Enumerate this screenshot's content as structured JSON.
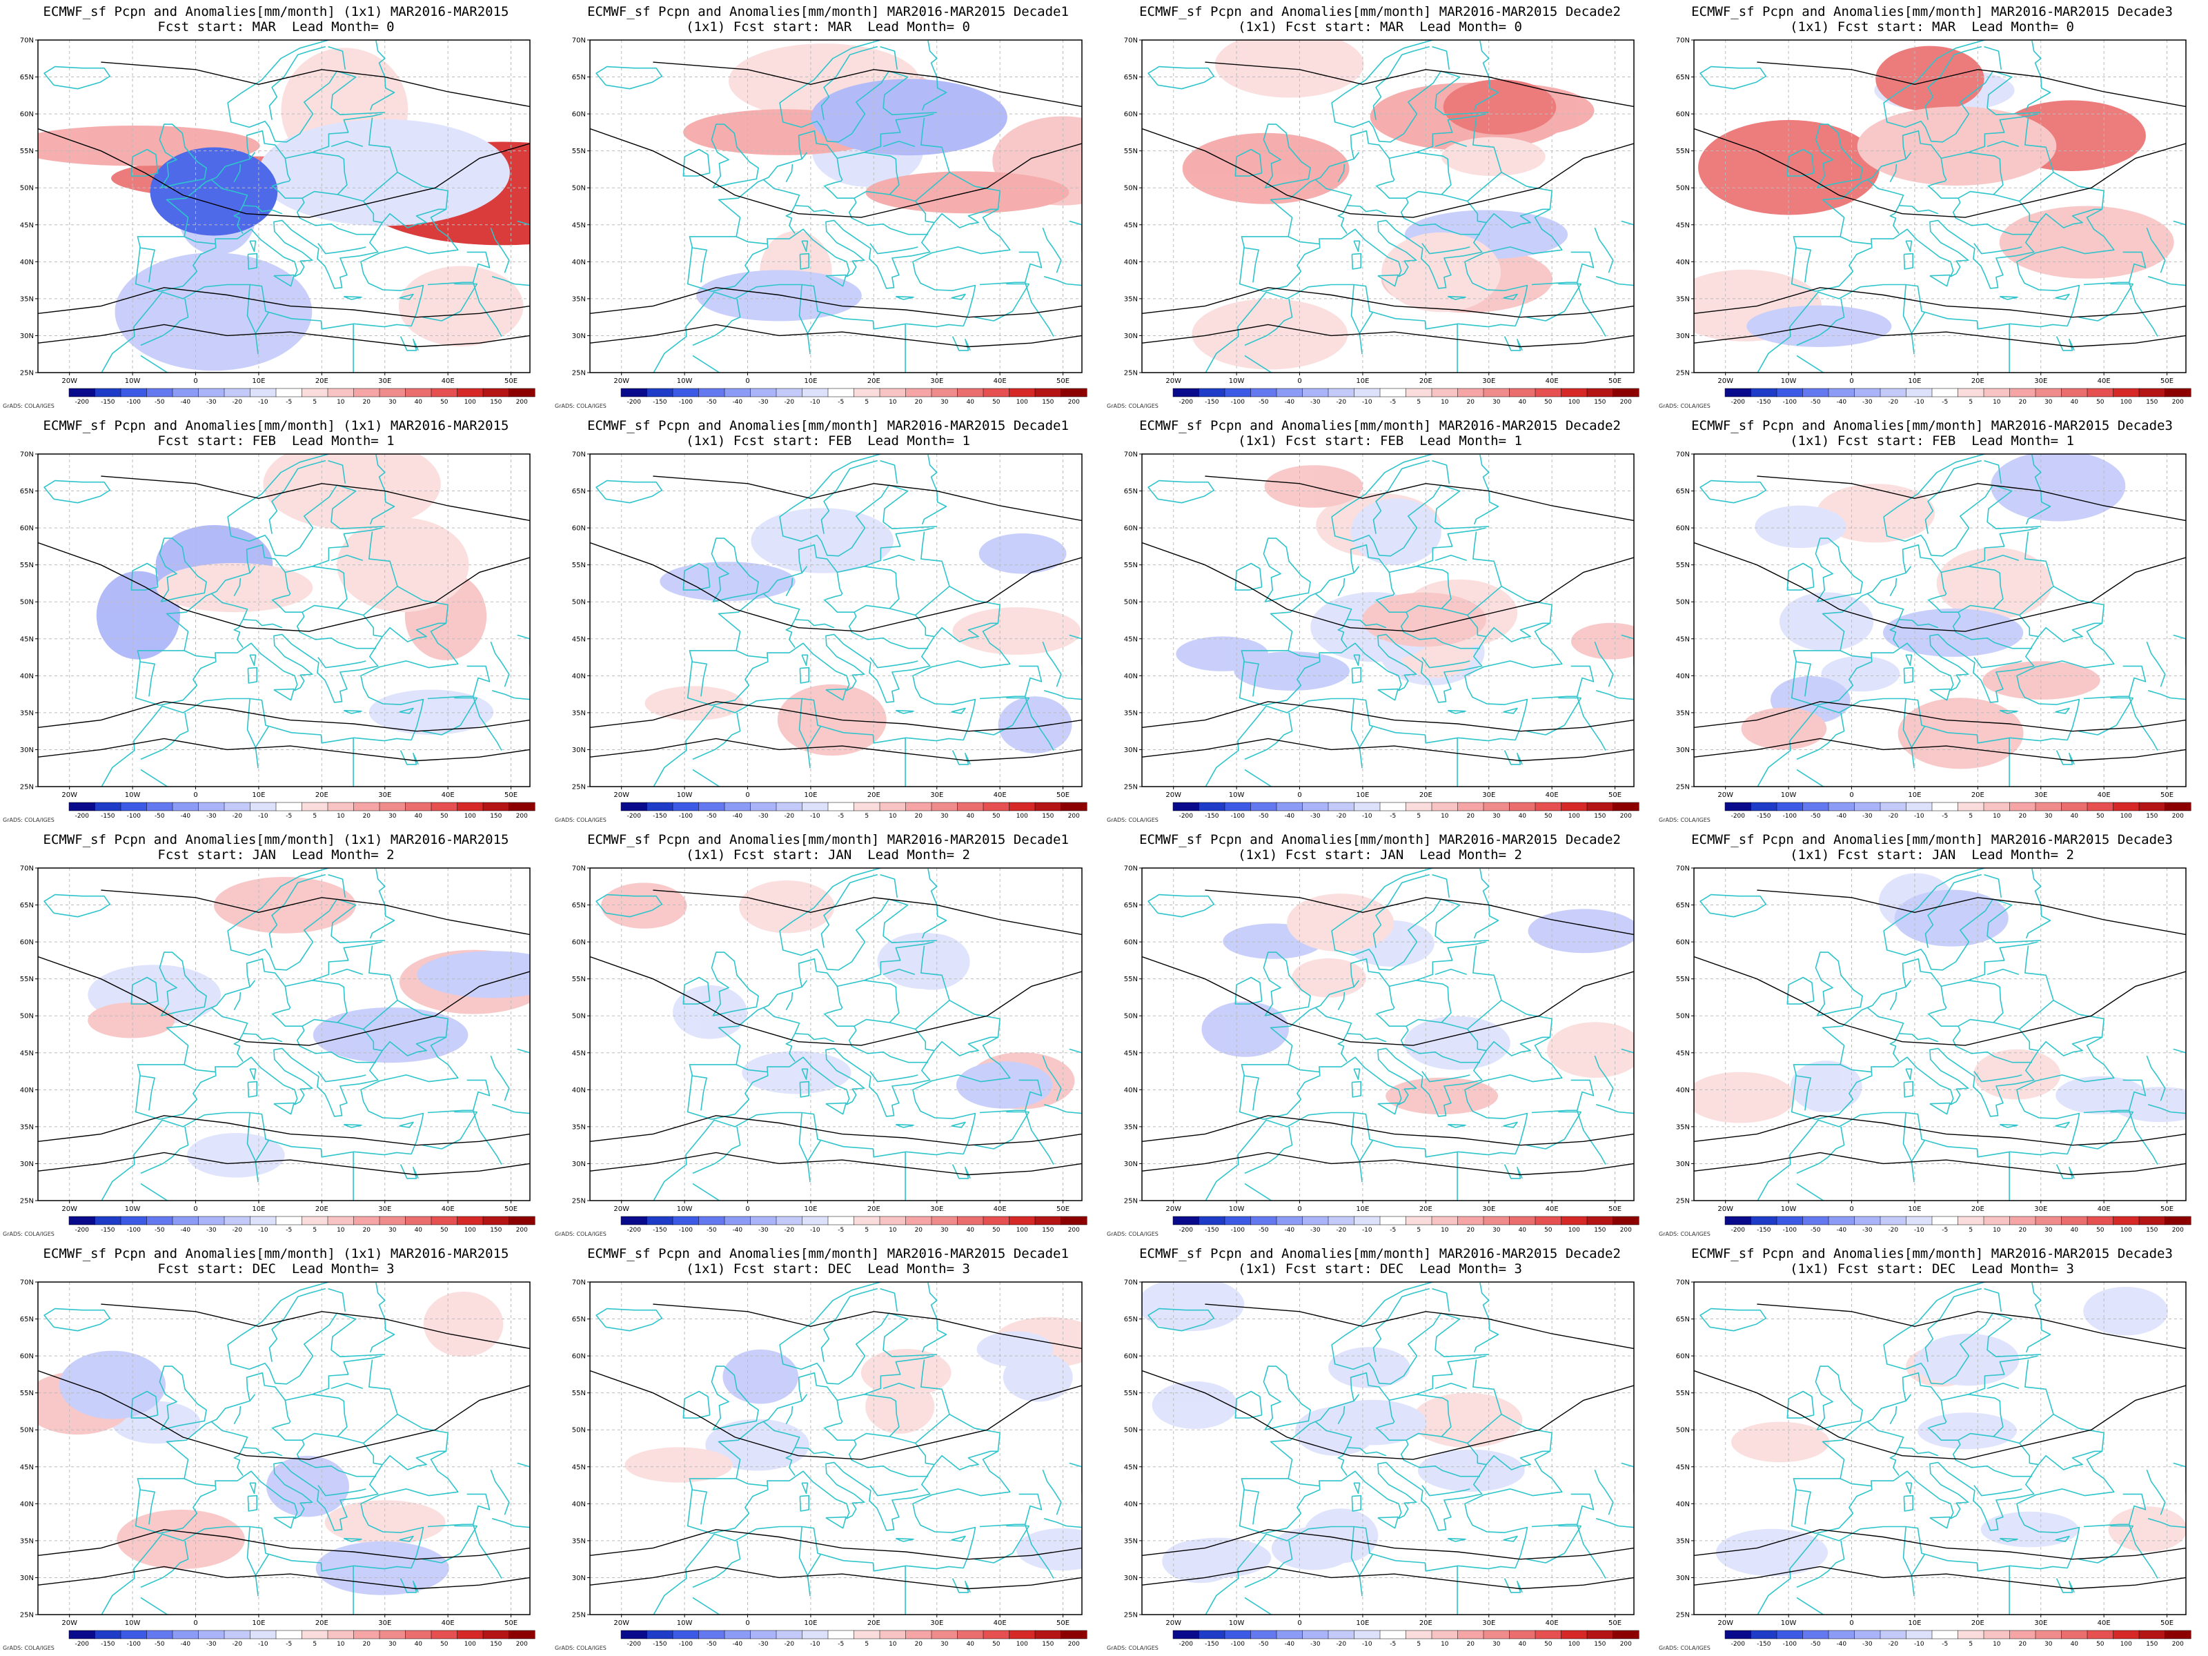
{
  "common": {
    "credit": "GrADS: COLA/IGES",
    "x_ticks": [
      "20W",
      "10W",
      "0",
      "10E",
      "20E",
      "30E",
      "40E",
      "50E"
    ],
    "y_ticks": [
      "70N",
      "65N",
      "60N",
      "55N",
      "50N",
      "45N",
      "40N",
      "35N",
      "30N",
      "25N"
    ],
    "colorbar_levels": [
      "-200",
      "-150",
      "-100",
      "-50",
      "-40",
      "-30",
      "-20",
      "-10",
      "-5",
      "5",
      "10",
      "20",
      "30",
      "40",
      "50",
      "100",
      "150",
      "200"
    ],
    "colorbar_colors": [
      "#0a0a8c",
      "#1e3cc8",
      "#3c5ae6",
      "#6478f0",
      "#8c9bf5",
      "#aab4f8",
      "#c3cafa",
      "#dde1fc",
      "#ffffff",
      "#fbdcdc",
      "#f8c3c3",
      "#f5a5a5",
      "#f08c8c",
      "#eb6e6e",
      "#e65050",
      "#d72828",
      "#b41414",
      "#8c0000"
    ],
    "coastline_color": "#2ec4cc",
    "contour_color": "#000000"
  },
  "panels": [
    {
      "title1": "ECMWF_sf Pcpn and Anomalies[mm/month] (1x1) MAR2016-MAR2015",
      "title2": "Fcst start: MAR  Lead Month= 0",
      "row": 0,
      "col": 0
    },
    {
      "title1": "ECMWF_sf Pcpn and Anomalies[mm/month] MAR2016-MAR2015 Decade1",
      "title2": "(1x1) Fcst start: MAR  Lead Month= 0",
      "row": 0,
      "col": 1
    },
    {
      "title1": "ECMWF_sf Pcpn and Anomalies[mm/month] MAR2016-MAR2015 Decade2",
      "title2": "(1x1) Fcst start: MAR  Lead Month= 0",
      "row": 0,
      "col": 2
    },
    {
      "title1": "ECMWF_sf Pcpn and Anomalies[mm/month] MAR2016-MAR2015 Decade3",
      "title2": "(1x1) Fcst start: MAR  Lead Month= 0",
      "row": 0,
      "col": 3
    },
    {
      "title1": "ECMWF_sf Pcpn and Anomalies[mm/month] (1x1) MAR2016-MAR2015",
      "title2": "Fcst start: FEB  Lead Month= 1",
      "row": 1,
      "col": 0
    },
    {
      "title1": "ECMWF_sf Pcpn and Anomalies[mm/month] MAR2016-MAR2015 Decade1",
      "title2": "(1x1) Fcst start: FEB  Lead Month= 1",
      "row": 1,
      "col": 1
    },
    {
      "title1": "ECMWF_sf Pcpn and Anomalies[mm/month] MAR2016-MAR2015 Decade2",
      "title2": "(1x1) Fcst start: FEB  Lead Month= 1",
      "row": 1,
      "col": 2
    },
    {
      "title1": "ECMWF_sf Pcpn and Anomalies[mm/month] MAR2016-MAR2015 Decade3",
      "title2": "(1x1) Fcst start: FEB  Lead Month= 1",
      "row": 1,
      "col": 3
    },
    {
      "title1": "ECMWF_sf Pcpn and Anomalies[mm/month] (1x1) MAR2016-MAR2015",
      "title2": "Fcst start: JAN  Lead Month= 2",
      "row": 2,
      "col": 0
    },
    {
      "title1": "ECMWF_sf Pcpn and Anomalies[mm/month] MAR2016-MAR2015 Decade1",
      "title2": "(1x1) Fcst start: JAN  Lead Month= 2",
      "row": 2,
      "col": 1
    },
    {
      "title1": "ECMWF_sf Pcpn and Anomalies[mm/month] MAR2016-MAR2015 Decade2",
      "title2": "(1x1) Fcst start: JAN  Lead Month= 2",
      "row": 2,
      "col": 2
    },
    {
      "title1": "ECMWF_sf Pcpn and Anomalies[mm/month] MAR2016-MAR2015 Decade3",
      "title2": "(1x1) Fcst start: JAN  Lead Month= 2",
      "row": 2,
      "col": 3
    },
    {
      "title1": "ECMWF_sf Pcpn and Anomalies[mm/month] (1x1) MAR2016-MAR2015",
      "title2": "Fcst start: DEC  Lead Month= 3",
      "row": 3,
      "col": 0
    },
    {
      "title1": "ECMWF_sf Pcpn and Anomalies[mm/month] MAR2016-MAR2015 Decade1",
      "title2": "(1x1) Fcst start: DEC  Lead Month= 3",
      "row": 3,
      "col": 1
    },
    {
      "title1": "ECMWF_sf Pcpn and Anomalies[mm/month] MAR2016-MAR2015 Decade2",
      "title2": "(1x1) Fcst start: DEC  Lead Month= 3",
      "row": 3,
      "col": 2
    },
    {
      "title1": "ECMWF_sf Pcpn and Anomalies[mm/month] MAR2016-MAR2015 Decade3",
      "title2": "(1x1) Fcst start: DEC  Lead Month= 3",
      "row": 3,
      "col": 3
    }
  ]
}
